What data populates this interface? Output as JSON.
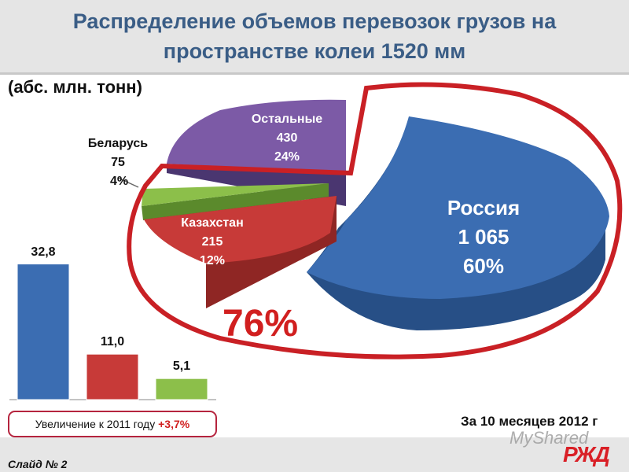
{
  "title_lines": [
    "Распределение объемов перевозок грузов на",
    "пространстве колеи 1520 мм"
  ],
  "units_label": "(абс. млн. тонн)",
  "big_percent": "76%",
  "increase_text": "Увеличение к 2011 году",
  "increase_value": "+3,7%",
  "period_text": "За 10 месяцев 2012 г",
  "slide_number": "Слайд № 2",
  "watermark": "MyShared",
  "logo": "РЖД",
  "chart_data": [
    {
      "type": "pie",
      "slices": [
        {
          "name": "Россия",
          "value_label": "1 065",
          "value": 1065,
          "percent_label": "60%",
          "percent": 60,
          "color": "#3b6db2"
        },
        {
          "name": "Остальные",
          "value_label": "430",
          "value": 430,
          "percent_label": "24%",
          "percent": 24,
          "color": "#7c5aa6"
        },
        {
          "name": "Беларусь",
          "value_label": "75",
          "value": 75,
          "percent_label": "4%",
          "percent": 4,
          "color": "#8cbf4a"
        },
        {
          "name": "Казахстан",
          "value_label": "215",
          "value": 215,
          "percent_label": "12%",
          "percent": 12,
          "color": "#c73a38"
        }
      ]
    },
    {
      "type": "bar",
      "categories": [
        "",
        "",
        ""
      ],
      "values": [
        32.8,
        11.0,
        5.1
      ],
      "value_labels": [
        "32,8",
        "11,0",
        "5,1"
      ],
      "colors": [
        "#3b6db2",
        "#c73a38",
        "#8cbf4a"
      ],
      "ylim": [
        0,
        35
      ]
    }
  ]
}
